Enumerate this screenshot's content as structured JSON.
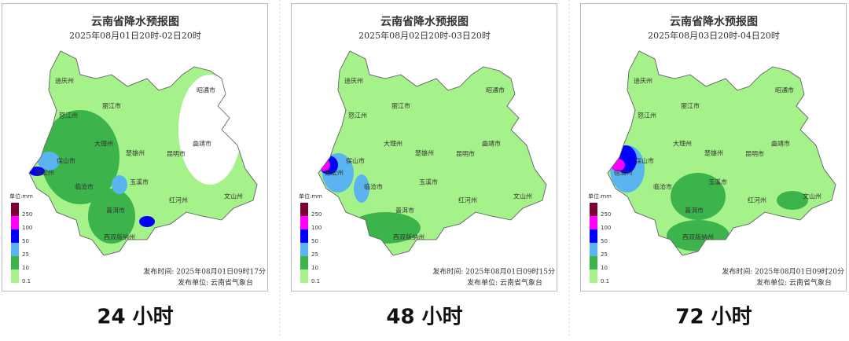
{
  "panels": [
    {
      "title": "云南省降水预报图",
      "subtitle": "2025年08月01日20时-02日20时",
      "legend_unit": "单位:mm",
      "legend_ticks": [
        "250",
        "100",
        "50",
        "25",
        "10",
        "0.1"
      ],
      "cities": [
        "迪庆州",
        "丽江市",
        "怒江州",
        "大理州",
        "保山市",
        "德宏州",
        "临沧市",
        "普洱市",
        "西双版纳州",
        "楚雄州",
        "玉溪市",
        "红河州",
        "文山州",
        "昆明市",
        "曲靖市",
        "昭通市"
      ],
      "issue_time": "发布时间: 2025年08月01日09时17分",
      "issuer": "发布单位: 云南省气象台",
      "caption": "24 小时"
    },
    {
      "title": "云南省降水预报图",
      "subtitle": "2025年08月02日20时-03日20时",
      "legend_unit": "单位:mm",
      "legend_ticks": [
        "250",
        "100",
        "50",
        "25",
        "10",
        "0.1"
      ],
      "cities": [
        "迪庆州",
        "丽江市",
        "怒江州",
        "大理州",
        "保山市",
        "德宏州",
        "临沧市",
        "普洱市",
        "西双版纳州",
        "楚雄州",
        "玉溪市",
        "红河州",
        "文山州",
        "昆明市",
        "曲靖市",
        "昭通市"
      ],
      "issue_time": "发布时间: 2025年08月01日09时15分",
      "issuer": "发布单位: 云南省气象台",
      "caption": "48 小时"
    },
    {
      "title": "云南省降水预报图",
      "subtitle": "2025年08月03日20时-04日20时",
      "legend_unit": "单位:mm",
      "legend_ticks": [
        "250",
        "100",
        "50",
        "25",
        "10",
        "0.1"
      ],
      "cities": [
        "迪庆州",
        "丽江市",
        "怒江州",
        "大理州",
        "保山市",
        "德宏州",
        "临沧市",
        "普洱市",
        "西双版纳州",
        "楚雄州",
        "玉溪市",
        "红河州",
        "文山州",
        "昆明市",
        "曲靖市",
        "昭通市"
      ],
      "issue_time": "发布时间: 2025年08月01日09时20分",
      "issuer": "发布单位: 云南省气象台",
      "caption": "72 小时"
    }
  ]
}
